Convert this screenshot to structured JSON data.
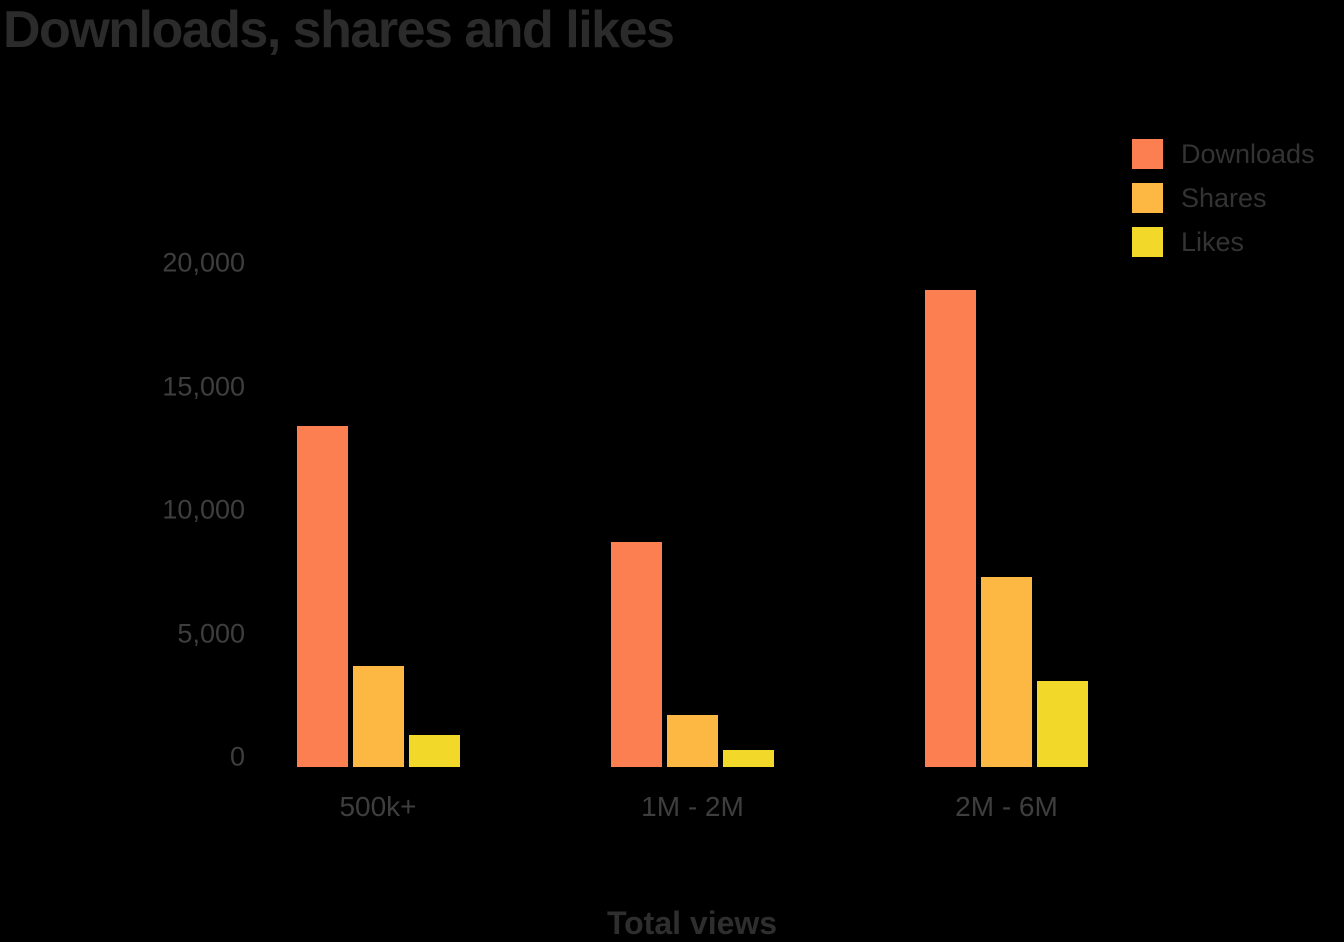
{
  "title": "Downloads, shares and likes",
  "legend": [
    {
      "label": "Downloads",
      "color": "#fc7f52"
    },
    {
      "label": "Shares",
      "color": "#fdb843"
    },
    {
      "label": "Likes",
      "color": "#f2d929"
    }
  ],
  "colors": {
    "background": "#000000",
    "title_text": "#2b2b2b",
    "axis_text": "#3e3e3e",
    "legend_text": "#333333"
  },
  "chart_data": {
    "type": "bar",
    "title": "Downloads, shares and likes",
    "xlabel": "Total views",
    "ylabel": "",
    "categories": [
      "500k+",
      "1M - 2M",
      "2M - 6M"
    ],
    "series": [
      {
        "name": "Downloads",
        "color": "#fc7f52",
        "values": [
          13800,
          9100,
          19300
        ]
      },
      {
        "name": "Shares",
        "color": "#fdb843",
        "values": [
          4100,
          2100,
          7700
        ]
      },
      {
        "name": "Likes",
        "color": "#f2d929",
        "values": [
          1300,
          700,
          3500
        ]
      }
    ],
    "ylim": [
      0,
      20000
    ],
    "yticks": [
      0,
      5000,
      10000,
      15000,
      20000
    ],
    "ytick_labels": [
      "0",
      "5,000",
      "10,000",
      "15,000",
      "20,000"
    ],
    "grid": false,
    "legend_position": "top-right"
  }
}
